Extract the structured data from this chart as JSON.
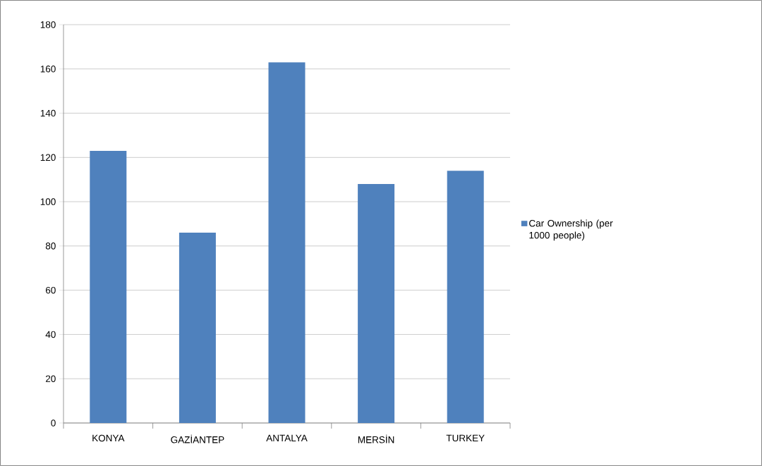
{
  "chart_data": {
    "type": "bar",
    "categories": [
      "KONYA",
      "GAZİANTEP",
      "ANTALYA",
      "MERSİN",
      "TURKEY"
    ],
    "series": [
      {
        "name": "Car Ownership (per 1000 people)",
        "color": "#4f81bd",
        "values": [
          123,
          86,
          163,
          108,
          114
        ]
      }
    ],
    "ylim": [
      0,
      180
    ],
    "yticks": [
      0,
      20,
      40,
      60,
      80,
      100,
      120,
      140,
      160,
      180
    ],
    "grid": "y",
    "legend": "right"
  }
}
